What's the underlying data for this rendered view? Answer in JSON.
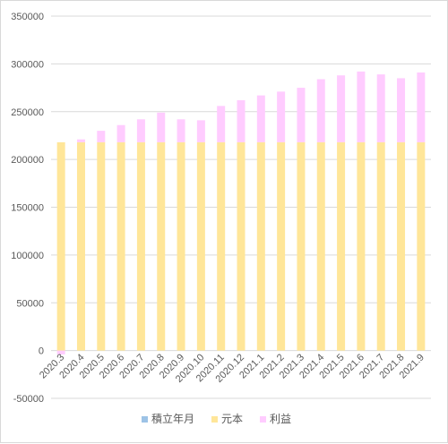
{
  "chart_data": {
    "type": "bar",
    "stacked": true,
    "categories": [
      "2020.3",
      "2020.4",
      "2020.5",
      "2020.6",
      "2020.7",
      "2020.8",
      "2020.9",
      "2020.10",
      "2020.11",
      "2020.12",
      "2021.1",
      "2021.2",
      "2021.3",
      "2021.4",
      "2021.5",
      "2021.6",
      "2021.7",
      "2021.8",
      "2021.9"
    ],
    "series": [
      {
        "name": "積立年月",
        "color": "#9dc3e6",
        "values": [
          0,
          0,
          0,
          0,
          0,
          0,
          0,
          0,
          0,
          0,
          0,
          0,
          0,
          0,
          0,
          0,
          0,
          0,
          0
        ]
      },
      {
        "name": "元本",
        "color": "#ffe699",
        "values": [
          218000,
          218000,
          218000,
          218000,
          218000,
          218000,
          218000,
          218000,
          218000,
          218000,
          218000,
          218000,
          218000,
          218000,
          218000,
          218000,
          218000,
          218000,
          218000
        ]
      },
      {
        "name": "利益",
        "color": "#ffccff",
        "values": [
          -4000,
          3000,
          12000,
          18000,
          24000,
          31000,
          24000,
          23000,
          38000,
          44000,
          49000,
          53000,
          57000,
          66000,
          70000,
          74000,
          71000,
          67000,
          73000
        ]
      }
    ],
    "yticks": [
      "350000",
      "300000",
      "250000",
      "200000",
      "150000",
      "100000",
      "50000",
      "0",
      "-50000"
    ],
    "ylim": [
      -50000,
      350000
    ],
    "grid": true,
    "legend": "bottom",
    "title": "",
    "xlabel": "",
    "ylabel": ""
  }
}
